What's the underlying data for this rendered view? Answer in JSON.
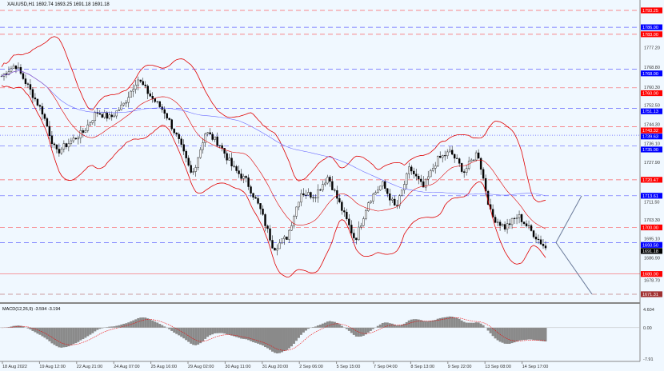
{
  "chart_data": {
    "type": "candlestick",
    "title": "XAUUSD,H1  1692.74 1693.25 1691.18 1691.18",
    "ylim": [
      1669,
      1797
    ],
    "y_ticks": [
      "1777.20",
      "1768.80",
      "1760.30",
      "1752.50",
      "1744.30",
      "1736.10",
      "1727.90",
      "1711.50",
      "1703.30",
      "1695.10",
      "1686.90",
      "1678.70"
    ],
    "x_ticks": [
      "18 Aug 2022",
      "19 Aug 12:00",
      "22 Aug 21:00",
      "24 Aug 07:00",
      "25 Aug 16:00",
      "29 Aug 02:00",
      "30 Aug 11:00",
      "31 Aug 20:00",
      "2 Sep 06:00",
      "5 Sep 15:00",
      "7 Sep 04:00",
      "8 Sep 13:00",
      "9 Sep 22:00",
      "13 Sep 08:00",
      "14 Sep 17:00"
    ],
    "approx_closes": [
      1765,
      1770,
      1760,
      1749.6,
      1732,
      1736.6,
      1741,
      1749.6,
      1747,
      1753,
      1764,
      1756,
      1749.6,
      1737.6,
      1722,
      1741,
      1736,
      1725.6,
      1720,
      1708,
      1691,
      1696,
      1715,
      1713.6,
      1722,
      1708,
      1694.6,
      1711.8,
      1718.7,
      1708,
      1725.6,
      1717,
      1729,
      1732.5,
      1723.9,
      1732.5,
      1705,
      1700,
      1705,
      1698,
      1691.18
    ],
    "colors": {
      "candle": "#000000",
      "bands": "#e00000",
      "ma": "#6a6aff",
      "red_level": "#ff0000",
      "blue_level": "#0000ff"
    },
    "levels": [
      {
        "value": 1793.25,
        "label": "1793.25",
        "color": "#ff0000",
        "style": "dashed"
      },
      {
        "value": 1786.0,
        "label": "1786.00",
        "color": "#0000ff",
        "style": "dashed"
      },
      {
        "value": 1783.0,
        "label": "1783.00",
        "color": "#ff0000",
        "style": "dashed"
      },
      {
        "value": 1768.0,
        "label": "1768.00",
        "color": "#0000ff",
        "style": "dashed"
      },
      {
        "value": 1760.0,
        "label": "1760.00",
        "color": "#ff0000",
        "style": "dashed"
      },
      {
        "value": 1751.13,
        "label": "1751.13",
        "color": "#0000ff",
        "style": "dashed"
      },
      {
        "value": 1743.32,
        "label": "1743.32",
        "color": "#ff0000",
        "style": "dashed"
      },
      {
        "value": 1739.63,
        "label": "1739.63",
        "color": "#0000ff",
        "style": "dotted"
      },
      {
        "value": 1735.0,
        "label": "1735.00",
        "color": "#0000ff",
        "style": "dashed"
      },
      {
        "value": 1720.47,
        "label": "1720.47",
        "color": "#ff0000",
        "style": "dashed"
      },
      {
        "value": 1713.61,
        "label": "1713.61",
        "color": "#0000ff",
        "style": "dashed"
      },
      {
        "value": 1700.0,
        "label": "1700.00",
        "color": "#ff0000",
        "style": "dashed"
      },
      {
        "value": 1693.5,
        "label": "1693.50",
        "color": "#0000ff",
        "style": "dashed"
      },
      {
        "value": 1691.18,
        "label": "1691.18",
        "color": "#000000",
        "style": "none"
      },
      {
        "value": 1680.0,
        "label": "1680.00",
        "color": "#ff0000",
        "style": "solid"
      },
      {
        "value": 1671.31,
        "label": "1671.31",
        "color": "#a03030",
        "style": "dashed"
      }
    ],
    "arrows": [
      {
        "from": 1693.5,
        "to": 1713.6
      },
      {
        "from": 1693.5,
        "to": 1671.31
      }
    ],
    "macd": {
      "label": "MACD(12,26,9) -3.594 -3.194",
      "ylim": [
        -7.91,
        4.604
      ],
      "ticks": [
        "4.604",
        "0.00",
        "-7.91"
      ]
    }
  }
}
